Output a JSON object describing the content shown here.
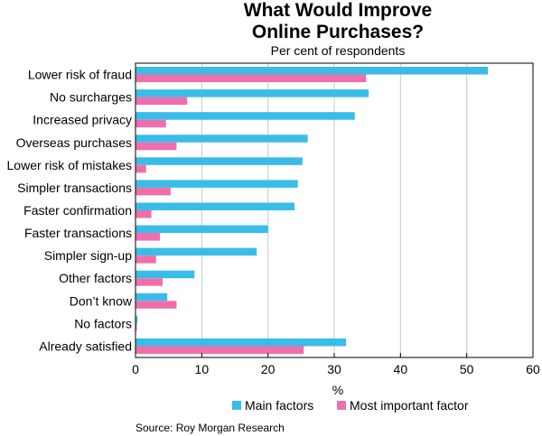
{
  "chart_data": {
    "type": "bar",
    "orientation": "horizontal",
    "title_line1": "What Would Improve",
    "title_line2": "Online Purchases?",
    "subtitle": "Per cent of respondents",
    "xlabel": "%",
    "xlim": [
      0,
      60
    ],
    "xticks": [
      "0",
      "10",
      "20",
      "30",
      "40",
      "50",
      "60"
    ],
    "grid": true,
    "legend_position": "bottom",
    "categories": [
      "Lower risk of fraud",
      "No surcharges",
      "Increased privacy",
      "Overseas purchases",
      "Lower risk of mistakes",
      "Simpler transactions",
      "Faster confirmation",
      "Faster transactions",
      "Simpler sign-up",
      "Other factors",
      "Don’t know",
      "No factors",
      "Already satisfied"
    ],
    "series": [
      {
        "name": "Main factors",
        "color": "#3bbce8",
        "values": [
          53.2,
          35.2,
          33.1,
          26.0,
          25.2,
          24.5,
          24.0,
          20.0,
          18.3,
          8.9,
          4.8,
          0.3,
          31.8
        ]
      },
      {
        "name": "Most important factor",
        "color": "#ee6fab",
        "values": [
          34.8,
          7.8,
          4.6,
          6.2,
          1.6,
          5.3,
          2.4,
          3.7,
          3.1,
          4.1,
          6.2,
          0.2,
          25.4
        ]
      }
    ],
    "source": "Source: Roy Morgan Research"
  }
}
